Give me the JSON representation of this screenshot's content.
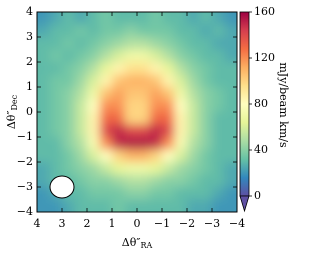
{
  "chart_data": {
    "type": "heatmap",
    "xlabel": {
      "text": "Δθ″",
      "sub": "RA"
    },
    "ylabel": {
      "text": "Δθ″",
      "sub": "Dec"
    },
    "colorbar_label": "mJy/beam km/s",
    "xlim": [
      4,
      -4
    ],
    "ylim": [
      -4,
      4
    ],
    "xticks": [
      4,
      3,
      2,
      1,
      0,
      {
        "value": -1,
        "label": "−1"
      },
      {
        "value": -2,
        "label": "−2"
      },
      {
        "value": -3,
        "label": "−3"
      },
      {
        "value": -4,
        "label": "−4"
      }
    ],
    "yticks": [
      4,
      3,
      2,
      1,
      0,
      {
        "value": -1,
        "label": "−1"
      },
      {
        "value": -2,
        "label": "−2"
      },
      {
        "value": -3,
        "label": "−3"
      },
      {
        "value": -4,
        "label": "−4"
      }
    ],
    "x": [
      3.75,
      3.25,
      2.75,
      2.25,
      1.75,
      1.25,
      0.75,
      0.25,
      -0.25,
      -0.75,
      -1.25,
      -1.75,
      -2.25,
      -2.75,
      -3.25,
      -3.75
    ],
    "y": [
      3.75,
      3.25,
      2.75,
      2.25,
      1.75,
      1.25,
      0.75,
      0.25,
      -0.25,
      -0.75,
      -1.25,
      -1.75,
      -2.25,
      -2.75,
      -3.25,
      -3.75
    ],
    "z": [
      [
        20,
        25,
        30,
        25,
        30,
        35,
        30,
        30,
        30,
        35,
        30,
        30,
        25,
        30,
        25,
        20
      ],
      [
        25,
        30,
        30,
        35,
        30,
        35,
        35,
        40,
        35,
        35,
        35,
        30,
        30,
        25,
        30,
        25
      ],
      [
        30,
        30,
        35,
        30,
        35,
        40,
        45,
        50,
        50,
        45,
        40,
        35,
        30,
        30,
        25,
        25
      ],
      [
        30,
        35,
        30,
        35,
        40,
        50,
        60,
        70,
        70,
        60,
        50,
        40,
        35,
        30,
        30,
        25
      ],
      [
        30,
        30,
        35,
        40,
        50,
        65,
        85,
        95,
        95,
        85,
        65,
        50,
        40,
        35,
        30,
        30
      ],
      [
        30,
        35,
        35,
        45,
        60,
        85,
        105,
        110,
        110,
        105,
        85,
        60,
        45,
        35,
        30,
        30
      ],
      [
        30,
        35,
        40,
        50,
        70,
        105,
        115,
        105,
        105,
        115,
        105,
        70,
        50,
        40,
        35,
        30
      ],
      [
        30,
        35,
        40,
        55,
        80,
        120,
        120,
        100,
        100,
        120,
        120,
        80,
        55,
        40,
        35,
        30
      ],
      [
        30,
        35,
        40,
        55,
        85,
        130,
        130,
        100,
        100,
        130,
        130,
        85,
        55,
        40,
        30,
        30
      ],
      [
        30,
        35,
        40,
        55,
        85,
        140,
        150,
        140,
        140,
        150,
        140,
        85,
        55,
        40,
        30,
        30
      ],
      [
        30,
        30,
        40,
        50,
        75,
        120,
        150,
        155,
        155,
        150,
        120,
        75,
        50,
        40,
        30,
        30
      ],
      [
        30,
        30,
        35,
        45,
        60,
        80,
        100,
        110,
        110,
        100,
        80,
        60,
        45,
        35,
        30,
        30
      ],
      [
        25,
        30,
        35,
        40,
        45,
        55,
        65,
        70,
        70,
        65,
        55,
        45,
        40,
        35,
        30,
        25
      ],
      [
        25,
        30,
        30,
        35,
        40,
        40,
        45,
        50,
        50,
        45,
        40,
        40,
        35,
        30,
        30,
        25
      ],
      [
        20,
        25,
        30,
        30,
        35,
        35,
        35,
        40,
        40,
        35,
        35,
        30,
        30,
        30,
        25,
        20
      ],
      [
        20,
        20,
        25,
        30,
        30,
        30,
        35,
        30,
        30,
        30,
        30,
        30,
        25,
        25,
        20,
        20
      ]
    ],
    "clim": [
      0,
      160
    ],
    "colorbar_ticks": [
      0,
      40,
      80,
      120,
      160
    ],
    "colormap": [
      "#5e4fa2",
      "#3288bd",
      "#66c2a5",
      "#abdda4",
      "#e6f598",
      "#ffffbf",
      "#fee08b",
      "#fdae61",
      "#f46d43",
      "#d53e4f",
      "#9e0142"
    ]
  }
}
